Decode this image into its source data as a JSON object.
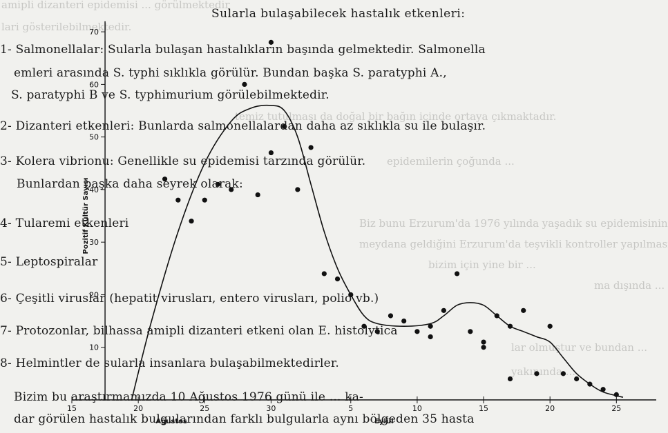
{
  "background_text": {
    "lines": [
      "amipli dizanteri epidemisi ... görülmektedir",
      "lari gösterilebilmektedir.",
      "temiz tutulması da doğal bir bağın içinde ortaya çıkmaktadır.",
      "epidemilerin çoğunda ...",
      "Biz bunu Erzurum'da 1976 yılında yaşadık su epidemisinin",
      "meydana geldiğini Erzurum'da teşvikli kontroller yapılmasına",
      "bizim için yine bir ...",
      "ma dışında ...",
      "lar olmuştur ve bundan ...",
      "yakınında ..."
    ]
  },
  "document": {
    "heading": "Sularla bulaşabilecek hastalık etkenleri:",
    "lines": [
      "1- Salmonellalar: Sularla bulaşan hastalıkların başında gelmektedir. Salmonella",
      "emleri arasında S. typhi sıklıkla görülür. Bundan başka S. paratyphi A.,",
      "S. paratyphi B ve S. typhimurium görülebilmektedir.",
      "2- Dizanteri etkenleri: Bunlarda salmonellalardan daha az sıklıkla su ile bulaşır.",
      "3- Kolera vibrionu: Genellikle su epidemisi tarzında görülür.",
      "Bunlardan başka daha seyrek olarak:",
      "4- Tularemi etkenleri",
      "5- Leptospiralar",
      "6- Çeşitli viruslar (hepatit virusları, entero virusları, polio vb.)",
      "7- Protozonlar, bilhassa amipli dizanteri etkeni olan E. histolytica",
      "8- Helmintler de sularla insanlara bulaşabilmektedirler.",
      "Bizim bu araştırmamızda 10 Ağustos 1976 günü ile ... ka-",
      "dar görülen hastalık bulgularından farklı bulgularla aynı bölgeden 35 hasta"
    ]
  },
  "chart_data": {
    "type": "scatter",
    "title": "",
    "ylabel": "Pozitif Kültür Sayısı",
    "xlabel_segments": [
      "Ağustos",
      "Eylül"
    ],
    "x_ticks": [
      {
        "x": 15,
        "label": "15"
      },
      {
        "x": 20,
        "label": "20"
      },
      {
        "x": 25,
        "label": "25"
      },
      {
        "x": 30,
        "label": "30"
      },
      {
        "x": 36,
        "label": "5"
      },
      {
        "x": 41,
        "label": "10"
      },
      {
        "x": 46,
        "label": "15"
      },
      {
        "x": 51,
        "label": "20"
      },
      {
        "x": 56,
        "label": "25"
      }
    ],
    "y_ticks": [
      10,
      20,
      30,
      40,
      50,
      60,
      70
    ],
    "xlim": [
      15,
      59
    ],
    "ylim": [
      0,
      75
    ],
    "points": [
      [
        22,
        42
      ],
      [
        23,
        38
      ],
      [
        24,
        34
      ],
      [
        25,
        38
      ],
      [
        26,
        41
      ],
      [
        27,
        40
      ],
      [
        28,
        60
      ],
      [
        29,
        39
      ],
      [
        30,
        68
      ],
      [
        30,
        47
      ],
      [
        31,
        52
      ],
      [
        32,
        40
      ],
      [
        33,
        48
      ],
      [
        34,
        24
      ],
      [
        35,
        23
      ],
      [
        36,
        20
      ],
      [
        37,
        14
      ],
      [
        38,
        13
      ],
      [
        39,
        16
      ],
      [
        40,
        15
      ],
      [
        41,
        13
      ],
      [
        42,
        14
      ],
      [
        42,
        12
      ],
      [
        43,
        17
      ],
      [
        44,
        24
      ],
      [
        45,
        13
      ],
      [
        46,
        10
      ],
      [
        46,
        11
      ],
      [
        47,
        16
      ],
      [
        48,
        4
      ],
      [
        48,
        14
      ],
      [
        49,
        17
      ],
      [
        50,
        5
      ],
      [
        51,
        14
      ],
      [
        52,
        5
      ],
      [
        53,
        4
      ],
      [
        54,
        3
      ],
      [
        55,
        2
      ],
      [
        56,
        1
      ]
    ],
    "curve": [
      [
        19.5,
        0
      ],
      [
        21,
        15
      ],
      [
        23,
        32
      ],
      [
        25,
        45
      ],
      [
        27,
        53
      ],
      [
        28.5,
        55.5
      ],
      [
        30,
        56
      ],
      [
        31,
        55
      ],
      [
        32,
        50
      ],
      [
        33,
        41
      ],
      [
        34,
        32
      ],
      [
        35,
        25
      ],
      [
        36,
        20
      ],
      [
        37,
        16
      ],
      [
        38,
        14.5
      ],
      [
        40,
        14
      ],
      [
        42,
        14.5
      ],
      [
        43,
        16
      ],
      [
        44,
        18
      ],
      [
        45,
        18.5
      ],
      [
        46,
        18
      ],
      [
        47,
        16
      ],
      [
        48,
        14
      ],
      [
        49,
        13
      ],
      [
        50,
        12
      ],
      [
        51,
        11
      ],
      [
        52,
        8
      ],
      [
        53,
        5
      ],
      [
        54,
        3
      ],
      [
        55,
        1.5
      ],
      [
        56.5,
        0.5
      ]
    ]
  }
}
